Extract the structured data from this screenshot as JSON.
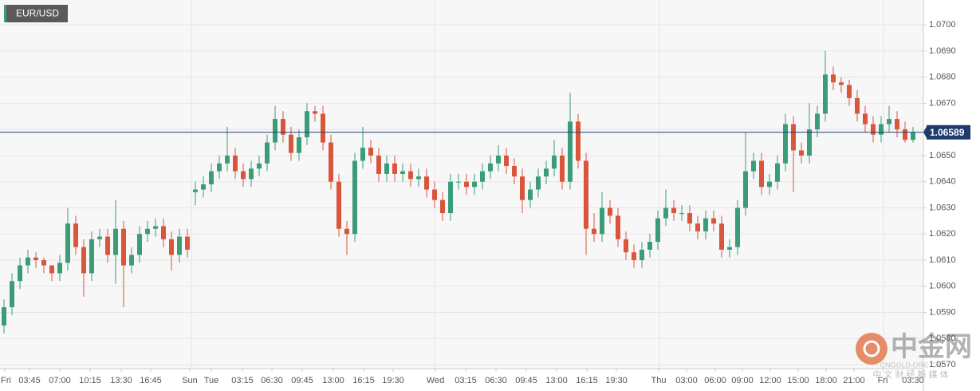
{
  "chart_data": {
    "type": "candlestick",
    "title": "EUR/USD",
    "up_color": "#3a9d78",
    "down_color": "#d9553c",
    "grid": true,
    "ylim": [
      1.05685,
      1.07095
    ],
    "yticks": [
      {
        "value": 1.057,
        "label": "1.0570"
      },
      {
        "value": 1.058,
        "label": "1.0580"
      },
      {
        "value": 1.059,
        "label": "1.0590"
      },
      {
        "value": 1.06,
        "label": "1.0600"
      },
      {
        "value": 1.061,
        "label": "1.0610"
      },
      {
        "value": 1.062,
        "label": "1.0620"
      },
      {
        "value": 1.063,
        "label": "1.0630"
      },
      {
        "value": 1.064,
        "label": "1.0640"
      },
      {
        "value": 1.065,
        "label": "1.0650"
      },
      {
        "value": 1.066,
        "label": "1.0660"
      },
      {
        "value": 1.067,
        "label": "1.0670"
      },
      {
        "value": 1.068,
        "label": "1.0680"
      },
      {
        "value": 1.069,
        "label": "1.0690"
      },
      {
        "value": 1.07,
        "label": "1.0700"
      }
    ],
    "xlim": [
      0,
      115.8
    ],
    "xticks": [
      {
        "value": 0.6,
        "label": "Fri"
      },
      {
        "value": 3.7,
        "label": "03:45"
      },
      {
        "value": 7.5,
        "label": "07:00"
      },
      {
        "value": 11.3,
        "label": "10:15"
      },
      {
        "value": 15.2,
        "label": "13:30"
      },
      {
        "value": 18.9,
        "label": "16:45"
      },
      {
        "value": 23.8,
        "label": "Sun"
      },
      {
        "value": 26.5,
        "label": "Tue"
      },
      {
        "value": 30.4,
        "label": "03:15"
      },
      {
        "value": 34.1,
        "label": "06:30"
      },
      {
        "value": 37.9,
        "label": "09:45"
      },
      {
        "value": 41.8,
        "label": "13:00"
      },
      {
        "value": 45.6,
        "label": "16:15"
      },
      {
        "value": 49.3,
        "label": "19:30"
      },
      {
        "value": 54.6,
        "label": "Wed"
      },
      {
        "value": 58.4,
        "label": "03:15"
      },
      {
        "value": 62.2,
        "label": "06:30"
      },
      {
        "value": 66.0,
        "label": "09:45"
      },
      {
        "value": 69.8,
        "label": "13:00"
      },
      {
        "value": 73.6,
        "label": "16:15"
      },
      {
        "value": 77.3,
        "label": "19:30"
      },
      {
        "value": 82.6,
        "label": "Thu"
      },
      {
        "value": 86.1,
        "label": "03:00"
      },
      {
        "value": 89.7,
        "label": "06:00"
      },
      {
        "value": 93.1,
        "label": "09:00"
      },
      {
        "value": 96.6,
        "label": "12:00"
      },
      {
        "value": 100.1,
        "label": "15:00"
      },
      {
        "value": 103.6,
        "label": "18:00"
      },
      {
        "value": 107.1,
        "label": "21:00"
      },
      {
        "value": 110.7,
        "label": "Fri"
      },
      {
        "value": 114.5,
        "label": "03:30"
      }
    ],
    "open": [
      1.0585,
      1.0592,
      1.0602,
      1.0608,
      1.0611,
      1.061,
      1.0608,
      1.0605,
      1.0609,
      1.0624,
      1.0615,
      1.0605,
      1.0618,
      1.0619,
      1.0612,
      1.0622,
      1.0608,
      1.0612,
      1.062,
      1.0622,
      1.0623,
      1.0618,
      1.0612,
      1.0619,
      1.0636,
      1.0637,
      1.0639,
      1.0644,
      1.0647,
      1.065,
      1.0644,
      1.0641,
      1.0645,
      1.0647,
      1.0655,
      1.0664,
      1.0658,
      1.0651,
      1.0657,
      1.0667,
      1.0666,
      1.0655,
      1.064,
      1.0622,
      1.062,
      1.0648,
      1.0653,
      1.065,
      1.0643,
      1.0647,
      1.0643,
      1.0644,
      1.0641,
      1.0642,
      1.0637,
      1.0633,
      1.0628,
      1.064,
      1.064,
      1.0638,
      1.064,
      1.0644,
      1.0647,
      1.065,
      1.0646,
      1.0642,
      1.0633,
      1.0637,
      1.0642,
      1.0645,
      1.065,
      1.064,
      1.0663,
      1.0648,
      1.0622,
      1.062,
      1.063,
      1.0627,
      1.0618,
      1.0613,
      1.061,
      1.0614,
      1.0617,
      1.0626,
      1.063,
      1.0628,
      1.0628,
      1.0624,
      1.0621,
      1.0626,
      1.0624,
      1.0614,
      1.0615,
      1.063,
      1.0644,
      1.0648,
      1.0638,
      1.064,
      1.0647,
      1.0662,
      1.0652,
      1.065,
      1.066,
      1.0666,
      1.0681,
      1.0678,
      1.0677,
      1.0672,
      1.0666,
      1.0662,
      1.0658,
      1.0662,
      1.0664,
      1.066,
      1.0656
    ],
    "high": [
      1.0595,
      1.0605,
      1.0611,
      1.0614,
      1.0613,
      1.0611,
      1.0608,
      1.0612,
      1.063,
      1.0627,
      1.0618,
      1.0621,
      1.0622,
      1.0622,
      1.0633,
      1.0625,
      1.0615,
      1.0623,
      1.0625,
      1.0626,
      1.0626,
      1.0621,
      1.0622,
      1.0622,
      1.064,
      1.0642,
      1.0647,
      1.065,
      1.0661,
      1.0653,
      1.0647,
      1.0648,
      1.065,
      1.0658,
      1.0669,
      1.0667,
      1.0661,
      1.066,
      1.067,
      1.0669,
      1.0669,
      1.0658,
      1.0643,
      1.0625,
      1.0651,
      1.0661,
      1.0656,
      1.0653,
      1.065,
      1.065,
      1.0647,
      1.0647,
      1.0645,
      1.0645,
      1.064,
      1.0636,
      1.0643,
      1.0643,
      1.0643,
      1.0643,
      1.0647,
      1.065,
      1.0654,
      1.0653,
      1.0649,
      1.0645,
      1.064,
      1.0645,
      1.0648,
      1.0656,
      1.0653,
      1.0674,
      1.0666,
      1.0651,
      1.0628,
      1.0636,
      1.0633,
      1.063,
      1.0621,
      1.0616,
      1.0617,
      1.062,
      1.0629,
      1.0637,
      1.0633,
      1.0631,
      1.0631,
      1.0627,
      1.0629,
      1.0629,
      1.0627,
      1.0618,
      1.0633,
      1.0659,
      1.0651,
      1.0651,
      1.0643,
      1.065,
      1.0666,
      1.0665,
      1.0655,
      1.067,
      1.0669,
      1.069,
      1.0684,
      1.068,
      1.0679,
      1.0675,
      1.0669,
      1.0665,
      1.0665,
      1.0669,
      1.0667,
      1.0663,
      1.0661
    ],
    "low": [
      1.0582,
      1.0589,
      1.0599,
      1.0605,
      1.0607,
      1.0605,
      1.0602,
      1.0602,
      1.0606,
      1.0612,
      1.0596,
      1.0602,
      1.0615,
      1.0609,
      1.0601,
      1.0592,
      1.0605,
      1.0609,
      1.0617,
      1.0619,
      1.0615,
      1.0606,
      1.0609,
      1.0611,
      1.0631,
      1.0634,
      1.0636,
      1.0641,
      1.0644,
      1.0641,
      1.0638,
      1.0638,
      1.0642,
      1.0644,
      1.0652,
      1.0655,
      1.0648,
      1.0648,
      1.0654,
      1.0663,
      1.0652,
      1.0637,
      1.0619,
      1.0612,
      1.0617,
      1.0645,
      1.0647,
      1.064,
      1.064,
      1.064,
      1.064,
      1.0638,
      1.0638,
      1.0634,
      1.063,
      1.0625,
      1.0625,
      1.0637,
      1.0635,
      1.0635,
      1.0637,
      1.0641,
      1.0644,
      1.0643,
      1.0639,
      1.0628,
      1.063,
      1.0634,
      1.0639,
      1.0642,
      1.0637,
      1.0637,
      1.0645,
      1.0612,
      1.0617,
      1.0617,
      1.0624,
      1.0615,
      1.061,
      1.0607,
      1.0607,
      1.0611,
      1.0614,
      1.0623,
      1.0625,
      1.0625,
      1.0621,
      1.0618,
      1.0618,
      1.0621,
      1.0611,
      1.0611,
      1.0612,
      1.0627,
      1.0641,
      1.0635,
      1.0635,
      1.0637,
      1.0644,
      1.0636,
      1.0647,
      1.0647,
      1.0657,
      1.0663,
      1.0675,
      1.0674,
      1.0669,
      1.0663,
      1.0659,
      1.0655,
      1.0655,
      1.0659,
      1.0657,
      1.0655,
      1.0655
    ],
    "close": [
      1.0592,
      1.0602,
      1.0608,
      1.0611,
      1.061,
      1.0608,
      1.0605,
      1.0609,
      1.0624,
      1.0615,
      1.0605,
      1.0618,
      1.0619,
      1.0612,
      1.0622,
      1.0608,
      1.0612,
      1.062,
      1.0622,
      1.0623,
      1.0618,
      1.0612,
      1.0619,
      1.0614,
      1.0637,
      1.0639,
      1.0644,
      1.0647,
      1.065,
      1.0644,
      1.0641,
      1.0645,
      1.0647,
      1.0655,
      1.0664,
      1.0658,
      1.0651,
      1.0657,
      1.0667,
      1.0666,
      1.0655,
      1.064,
      1.0622,
      1.062,
      1.0648,
      1.0653,
      1.065,
      1.0643,
      1.0647,
      1.0643,
      1.0644,
      1.0641,
      1.0642,
      1.0637,
      1.0633,
      1.0628,
      1.064,
      1.064,
      1.0638,
      1.064,
      1.0644,
      1.0647,
      1.065,
      1.0646,
      1.0642,
      1.0633,
      1.0637,
      1.0642,
      1.0645,
      1.065,
      1.064,
      1.0663,
      1.0648,
      1.0622,
      1.062,
      1.063,
      1.0627,
      1.0618,
      1.0613,
      1.061,
      1.0614,
      1.0617,
      1.0626,
      1.063,
      1.0628,
      1.0628,
      1.0624,
      1.0621,
      1.0626,
      1.0624,
      1.0614,
      1.0615,
      1.063,
      1.0644,
      1.0648,
      1.0638,
      1.064,
      1.0647,
      1.0662,
      1.0652,
      1.065,
      1.066,
      1.0666,
      1.0681,
      1.0678,
      1.0677,
      1.0672,
      1.0666,
      1.0662,
      1.0658,
      1.0662,
      1.0664,
      1.066,
      1.0656,
      1.0659
    ],
    "last_price": 1.06589,
    "watermark": {
      "name": "中金网",
      "domain": "CNGOLD.ORG.CN",
      "tagline": "中 文 财 经 新 媒 体"
    }
  }
}
